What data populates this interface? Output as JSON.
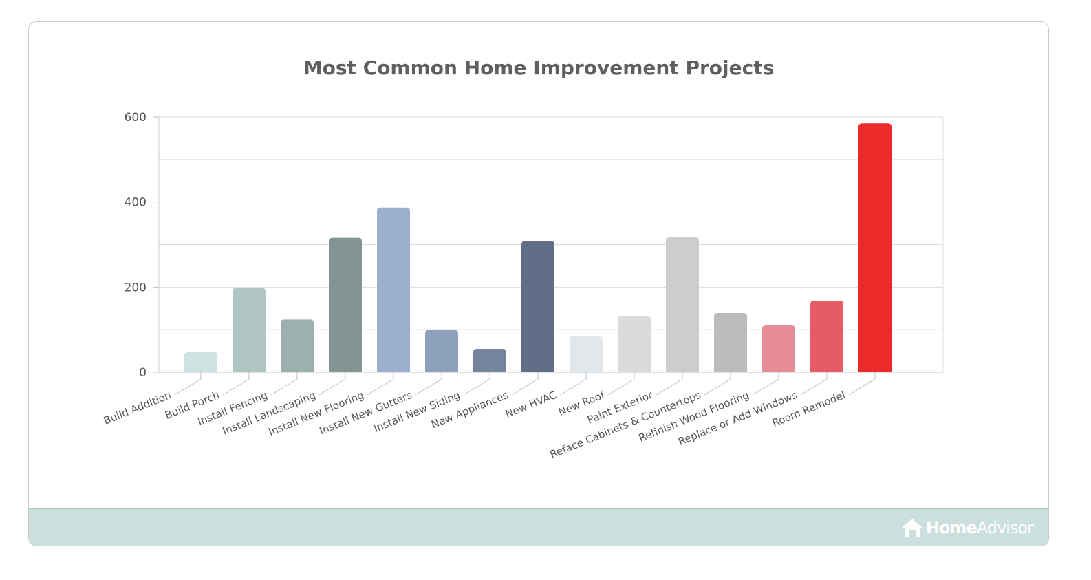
{
  "chart_data": {
    "type": "bar",
    "title": "Most Common Home Improvement Projects",
    "xlabel": "",
    "ylabel": "",
    "ylim": [
      0,
      600
    ],
    "yticks": [
      0,
      200,
      400,
      600
    ],
    "grid": true,
    "categories": [
      "Build Addition",
      "Build Porch",
      "Install Fencing",
      "Install Landscaping",
      "Install New Flooring",
      "Install New Gutters",
      "Install New Siding",
      "New Appliances",
      "New HVAC",
      "New Roof",
      "Paint Exterior",
      "Reface Cabinets & Countertops",
      "Refinish Wood Flooring",
      "Replace or Add Windows",
      "Room Remodel"
    ],
    "values": [
      47,
      198,
      124,
      316,
      387,
      99,
      55,
      308,
      85,
      132,
      317,
      139,
      110,
      168,
      585
    ],
    "colors": [
      "#cde2e1",
      "#afc6c3",
      "#9cb0ad",
      "#829593",
      "#9bb0cf",
      "#8ea2bd",
      "#75859e",
      "#606e87",
      "#e2e7ec",
      "#d9dbdc",
      "#cbcdce",
      "#babcbe",
      "#e68c96",
      "#e75b66",
      "#ec2a2a"
    ]
  },
  "brand": {
    "name_bold": "Home",
    "name_light": "Advisor",
    "icon": "house-icon"
  }
}
